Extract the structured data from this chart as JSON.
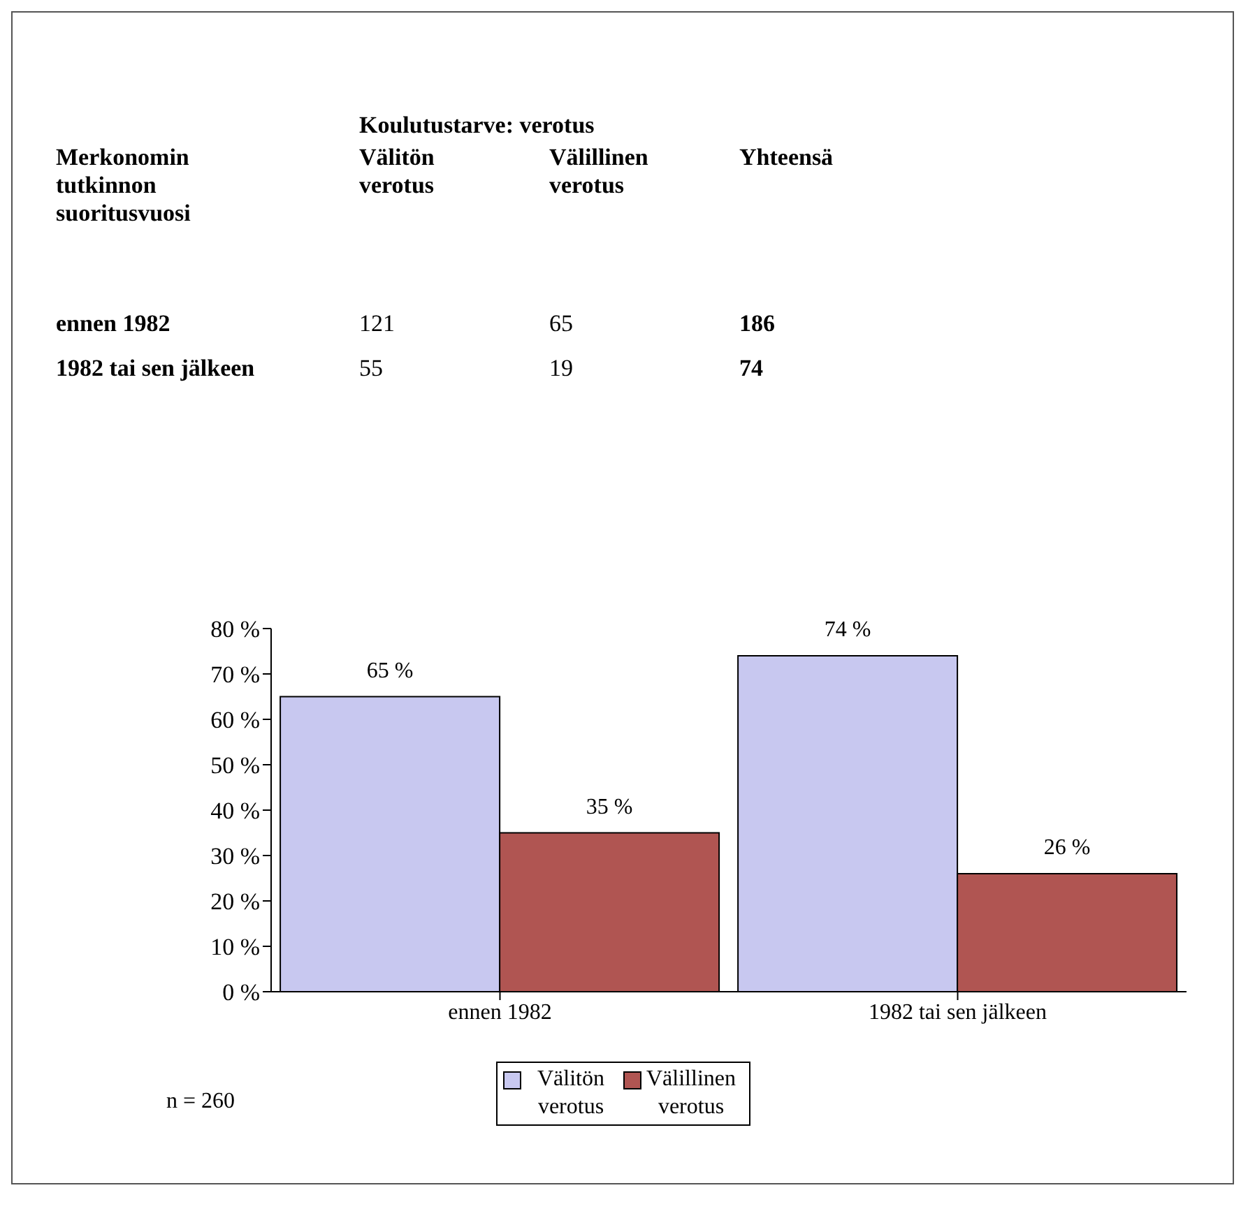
{
  "chart_data": [
    {
      "type": "heatmap",
      "title": "Koulutustarve: verotus",
      "ylabel": "Merkonomin tutkinnon suoritusvuosi",
      "categories": [
        "Välitön verotus",
        "Välillinen verotus",
        "Yhteensä"
      ],
      "y_categories": [
        "ennen 1982",
        "1982 tai sen jälkeen"
      ],
      "cells": [
        [
          121,
          65,
          186
        ],
        [
          55,
          19,
          74
        ]
      ],
      "data_labels": true
    },
    {
      "type": "bar",
      "categories": [
        "ennen 1982",
        "1982 tai sen jälkeen"
      ],
      "series": [
        {
          "name": "Välitön verotus",
          "color": "#c8c8f0",
          "values": [
            65,
            74
          ],
          "value_labels": [
            "65 %",
            "74 %"
          ]
        },
        {
          "name": "Välillinen verotus",
          "color": "#b05552",
          "values": [
            35,
            26
          ],
          "value_labels": [
            "35 %",
            "26 %"
          ]
        }
      ],
      "ylim": [
        0,
        80
      ],
      "yticks": [
        {
          "value": 0,
          "label": "0 %"
        },
        {
          "value": 10,
          "label": "10 %"
        },
        {
          "value": 20,
          "label": "20 %"
        },
        {
          "value": 30,
          "label": "30 %"
        },
        {
          "value": 40,
          "label": "40 %"
        },
        {
          "value": 50,
          "label": "50 %"
        },
        {
          "value": 60,
          "label": "60 %"
        },
        {
          "value": 70,
          "label": "70 %"
        },
        {
          "value": 80,
          "label": "80 %"
        }
      ],
      "legend": "bottom",
      "annotations": [
        "n = 260"
      ]
    }
  ]
}
